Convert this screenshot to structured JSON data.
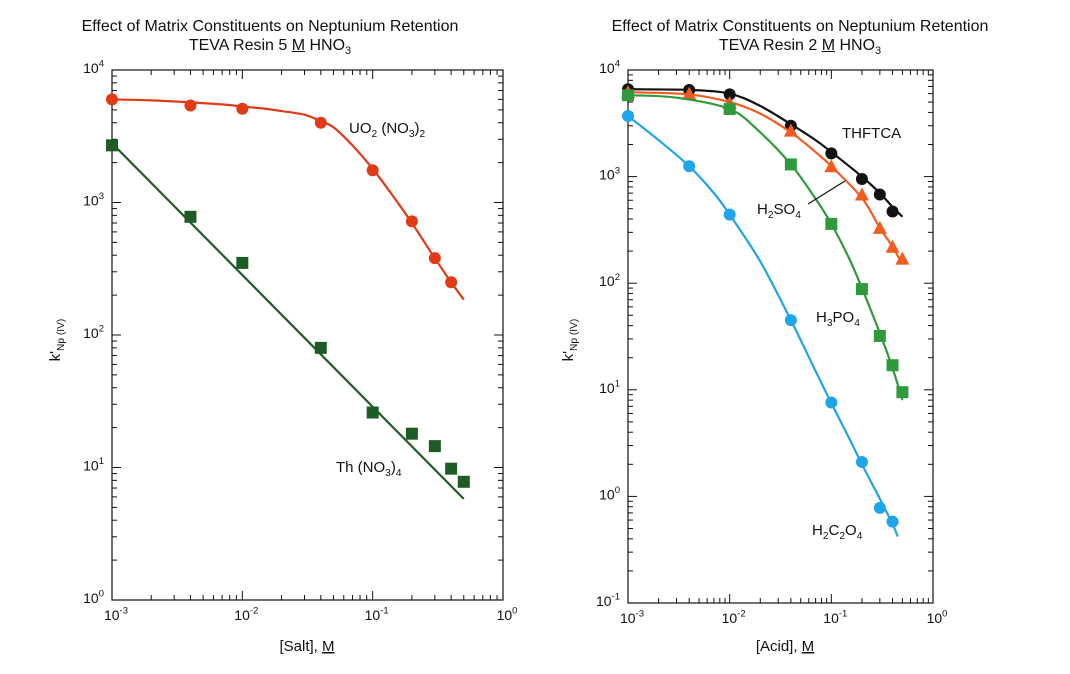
{
  "charts": [
    {
      "title": "Effect of Matrix Constituents on Neptunium Retention",
      "subtitle_prefix": "TEVA Resin  5 ",
      "subtitle_unit": "M",
      "subtitle_suffix": " HNO",
      "subtitle_sub": "3",
      "xlabel": "[Salt], ",
      "xlabel_unit": "M",
      "ylabel": "k'",
      "ylabel_sub": "Np (IV)"
    },
    {
      "title": "Effect of Matrix Constituents on Neptunium Retention",
      "subtitle_prefix": "TEVA Resin  2 ",
      "subtitle_unit": "M",
      "subtitle_suffix": " HNO",
      "subtitle_sub": "3",
      "xlabel": "[Acid], ",
      "xlabel_unit": "M",
      "ylabel": "k'",
      "ylabel_sub": "Np (IV)"
    }
  ],
  "chart_data": [
    {
      "type": "scatter",
      "title": "Effect of Matrix Constituents on Neptunium Retention — TEVA Resin 5 M HNO3",
      "xlabel": "[Salt], M",
      "ylabel": "k'Np (IV)",
      "xscale": "log",
      "yscale": "log",
      "xlim": [
        0.001,
        1
      ],
      "ylim": [
        1,
        10000
      ],
      "xticks": [
        {
          "base": "10",
          "exp": "-3"
        },
        {
          "base": "10",
          "exp": "-2"
        },
        {
          "base": "10",
          "exp": "-1"
        },
        {
          "base": "10",
          "exp": "0"
        }
      ],
      "yticks": [
        {
          "base": "10",
          "exp": "0"
        },
        {
          "base": "10",
          "exp": "1"
        },
        {
          "base": "10",
          "exp": "2"
        },
        {
          "base": "10",
          "exp": "3"
        },
        {
          "base": "10",
          "exp": "4"
        }
      ],
      "series": [
        {
          "name": "UO2 (NO3)2",
          "label_parts": [
            [
              "UO",
              ""
            ],
            [
              "2",
              "sub"
            ],
            [
              " (NO",
              ""
            ],
            [
              "3",
              "sub"
            ],
            [
              ")",
              ""
            ],
            [
              "2",
              "sub"
            ]
          ],
          "color": "#e03a17",
          "marker": "circle",
          "x": [
            0.001,
            0.004,
            0.01,
            0.04,
            0.1,
            0.2,
            0.3,
            0.4
          ],
          "y": [
            6000,
            5400,
            5100,
            4000,
            1750,
            720,
            380,
            250
          ],
          "fit_x": [
            0.001,
            0.002,
            0.004,
            0.007,
            0.01,
            0.015,
            0.02,
            0.03,
            0.04,
            0.05,
            0.07,
            0.1,
            0.15,
            0.2,
            0.3,
            0.4,
            0.5
          ],
          "fit_y": [
            6000,
            5900,
            5700,
            5500,
            5300,
            5100,
            4900,
            4600,
            4100,
            3700,
            2700,
            1800,
            1050,
            700,
            380,
            250,
            185
          ]
        },
        {
          "name": "Th (NO3)4",
          "label_parts": [
            [
              "Th (NO",
              ""
            ],
            [
              "3",
              "sub"
            ],
            [
              ")",
              ""
            ],
            [
              "4",
              "sub"
            ]
          ],
          "color": "#1f5c25",
          "marker": "square",
          "x": [
            0.001,
            0.004,
            0.01,
            0.04,
            0.1,
            0.2,
            0.3,
            0.4,
            0.5
          ],
          "y": [
            2700,
            780,
            350,
            80,
            26,
            18,
            14.5,
            9.8,
            7.8
          ],
          "fit_x": [
            0.001,
            0.5
          ],
          "fit_y": [
            2800,
            5.8
          ]
        }
      ]
    },
    {
      "type": "scatter",
      "title": "Effect of Matrix Constituents on Neptunium Retention — TEVA Resin 2 M HNO3",
      "xlabel": "[Acid], M",
      "ylabel": "k'Np (IV)",
      "xscale": "log",
      "yscale": "log",
      "xlim": [
        0.001,
        1
      ],
      "ylim": [
        0.1,
        10000
      ],
      "xticks": [
        {
          "base": "10",
          "exp": "-3"
        },
        {
          "base": "10",
          "exp": "-2"
        },
        {
          "base": "10",
          "exp": "-1"
        },
        {
          "base": "10",
          "exp": "0"
        }
      ],
      "yticks": [
        {
          "base": "10",
          "exp": "-1"
        },
        {
          "base": "10",
          "exp": "0"
        },
        {
          "base": "10",
          "exp": "1"
        },
        {
          "base": "10",
          "exp": "2"
        },
        {
          "base": "10",
          "exp": "3"
        },
        {
          "base": "10",
          "exp": "4"
        }
      ],
      "series": [
        {
          "name": "THFTCA",
          "label_parts": [
            [
              "THFTCA",
              ""
            ]
          ],
          "color": "#111111",
          "marker": "circle",
          "x": [
            0.001,
            0.004,
            0.01,
            0.04,
            0.1,
            0.2,
            0.3,
            0.4
          ],
          "y": [
            6600,
            6500,
            5900,
            3000,
            1650,
            950,
            680,
            470
          ],
          "fit_x": [
            0.001,
            0.004,
            0.01,
            0.02,
            0.04,
            0.07,
            0.1,
            0.2,
            0.3,
            0.4,
            0.5
          ],
          "fit_y": [
            6600,
            6500,
            6000,
            4600,
            3100,
            2200,
            1700,
            1000,
            700,
            520,
            420
          ]
        },
        {
          "name": "H2SO4",
          "label_parts": [
            [
              "H",
              ""
            ],
            [
              "2",
              "sub"
            ],
            [
              "SO",
              ""
            ],
            [
              "4",
              "sub"
            ]
          ],
          "color": "#f35b1f",
          "marker": "triangle",
          "x": [
            0.001,
            0.004,
            0.01,
            0.04,
            0.1,
            0.2,
            0.3,
            0.4,
            0.5
          ],
          "y": [
            6200,
            6000,
            4900,
            2700,
            1250,
            680,
            330,
            220,
            170
          ],
          "fit_x": [
            0.001,
            0.004,
            0.01,
            0.02,
            0.04,
            0.07,
            0.1,
            0.2,
            0.3,
            0.4,
            0.5
          ],
          "fit_y": [
            6200,
            5900,
            5000,
            3900,
            2600,
            1700,
            1250,
            630,
            330,
            220,
            150
          ]
        },
        {
          "name": "H3PO4",
          "label_parts": [
            [
              "H",
              ""
            ],
            [
              "3",
              "sub"
            ],
            [
              "PO",
              ""
            ],
            [
              "4",
              "sub"
            ]
          ],
          "color": "#2f9a3c",
          "marker": "square",
          "x": [
            0.001,
            0.01,
            0.04,
            0.1,
            0.2,
            0.3,
            0.4,
            0.5
          ],
          "y": [
            5800,
            4300,
            1300,
            360,
            88,
            32,
            17,
            9.5
          ],
          "fit_x": [
            0.001,
            0.003,
            0.01,
            0.02,
            0.04,
            0.07,
            0.1,
            0.15,
            0.2,
            0.3,
            0.4,
            0.5
          ],
          "fit_y": [
            5800,
            5500,
            4300,
            2600,
            1300,
            620,
            360,
            170,
            90,
            34,
            16,
            8
          ]
        },
        {
          "name": "H2C2O4",
          "label_parts": [
            [
              "H",
              ""
            ],
            [
              "2",
              "sub"
            ],
            [
              "C",
              ""
            ],
            [
              "2",
              "sub"
            ],
            [
              "O",
              ""
            ],
            [
              "4",
              "sub"
            ]
          ],
          "color": "#1fa5ea",
          "marker": "circle",
          "x": [
            0.001,
            0.004,
            0.01,
            0.04,
            0.1,
            0.2,
            0.3,
            0.4
          ],
          "y": [
            3700,
            1250,
            440,
            45,
            7.6,
            2.1,
            0.78,
            0.58
          ],
          "fit_x": [
            0.001,
            0.002,
            0.004,
            0.007,
            0.01,
            0.02,
            0.04,
            0.07,
            0.1,
            0.15,
            0.2,
            0.3,
            0.4,
            0.45
          ],
          "fit_y": [
            3700,
            2200,
            1250,
            700,
            440,
            160,
            45,
            15,
            7.5,
            3.5,
            2.0,
            0.95,
            0.55,
            0.42
          ]
        }
      ]
    }
  ]
}
